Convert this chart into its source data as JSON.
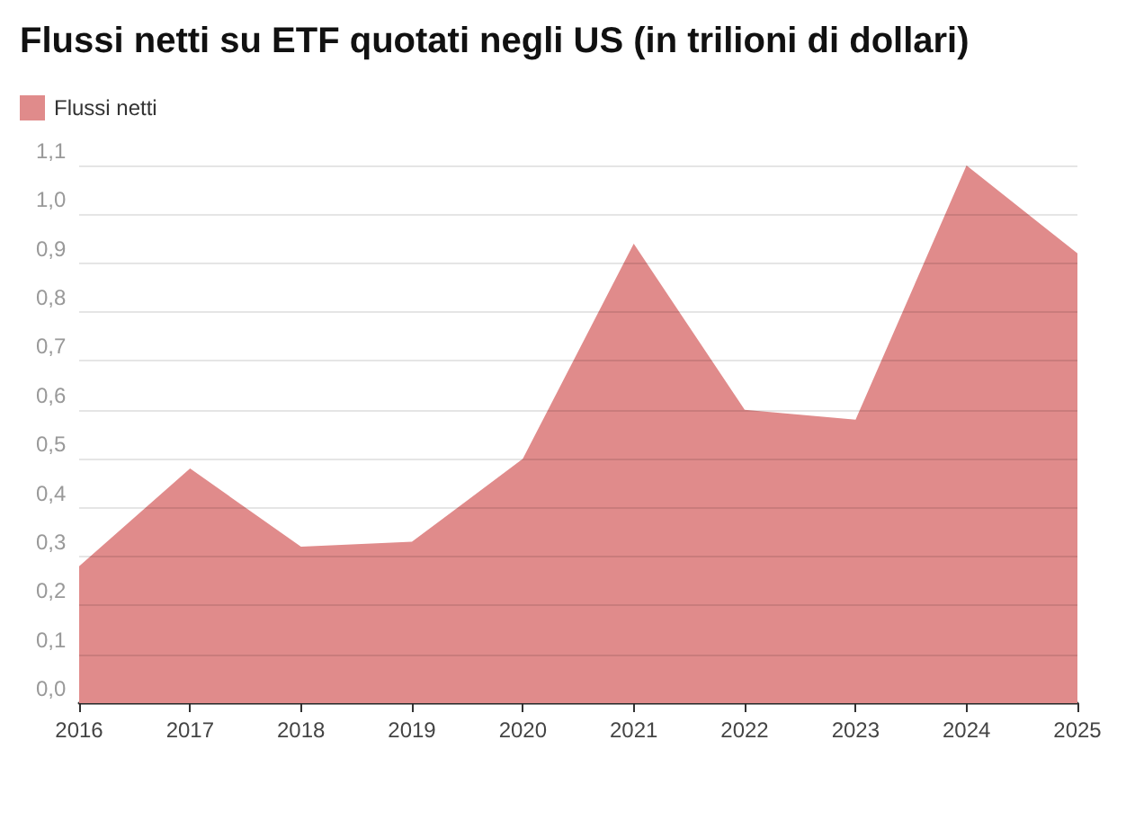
{
  "chart_data": {
    "type": "area",
    "title": "Flussi netti su ETF quotati negli US (in trilioni di dollari)",
    "categories": [
      "2016",
      "2017",
      "2018",
      "2019",
      "2020",
      "2021",
      "2022",
      "2023",
      "2024",
      "2025"
    ],
    "series": [
      {
        "name": "Flussi netti",
        "color": "#e08b8b",
        "values": [
          0.28,
          0.48,
          0.32,
          0.33,
          0.5,
          0.94,
          0.6,
          0.58,
          1.1,
          0.92
        ]
      }
    ],
    "ylim": [
      0,
      1.1
    ],
    "yticks": [
      {
        "value": 0,
        "label": "0,0"
      },
      {
        "value": 0.1,
        "label": "0,1"
      },
      {
        "value": 0.2,
        "label": "0,2"
      },
      {
        "value": 0.3,
        "label": "0,3"
      },
      {
        "value": 0.4,
        "label": "0,4"
      },
      {
        "value": 0.5,
        "label": "0,5"
      },
      {
        "value": 0.6,
        "label": "0,6"
      },
      {
        "value": 0.7,
        "label": "0,7"
      },
      {
        "value": 0.8,
        "label": "0,8"
      },
      {
        "value": 0.9,
        "label": "0,9"
      },
      {
        "value": 1,
        "label": "1,0"
      },
      {
        "value": 1.1,
        "label": "1,1"
      }
    ],
    "grid": "y",
    "legend": "top left"
  }
}
